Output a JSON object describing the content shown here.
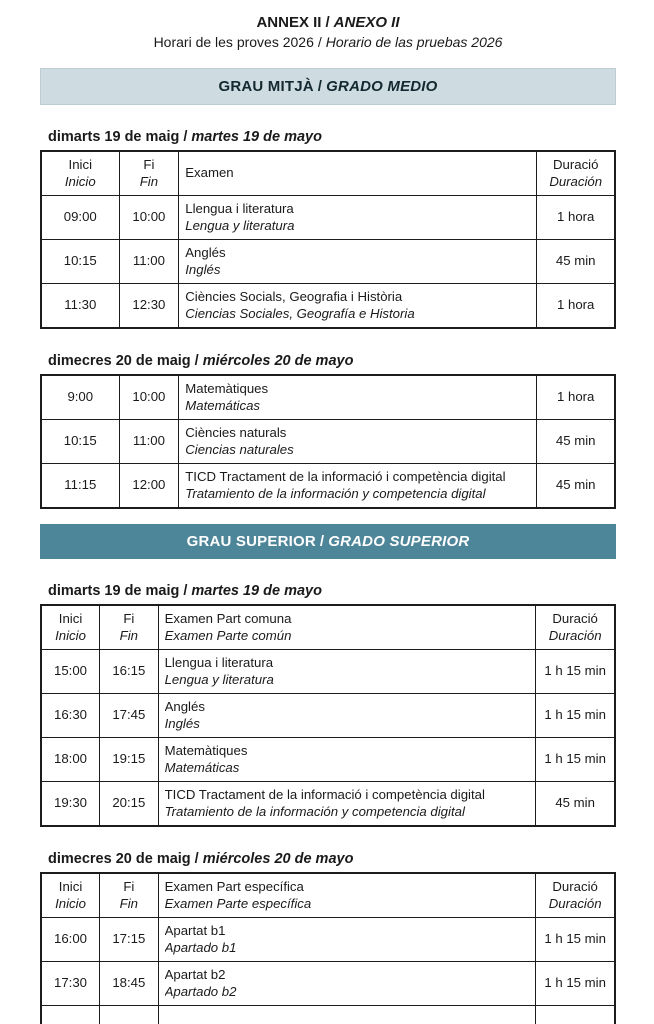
{
  "sep": "/",
  "title": {
    "ca": "ANNEX II",
    "es": "ANEXO II"
  },
  "subtitle": {
    "ca": "Horari de les proves 2026",
    "es": "Horario de las pruebas 2026"
  },
  "labels": {
    "inici_ca": "Inici",
    "inici_es": "Inicio",
    "fi_ca": "Fi",
    "fi_es": "Fin",
    "duracio_ca": "Duració",
    "duracio_es": "Duración"
  },
  "colors": {
    "band_medio_bg": "#cedce2",
    "band_medio_text": "#13282f",
    "band_superior_bg": "#4d8599",
    "band_superior_text": "#ffffff",
    "table_border": "#1c1c1c"
  },
  "sections": [
    {
      "band": {
        "ca": "GRAU MITJÀ",
        "es": "GRADO MEDIO"
      },
      "days": [
        {
          "heading": {
            "ca": "dimarts 19 de maig",
            "es": "martes 19 de mayo"
          },
          "header": {
            "examen_ca": "Examen",
            "examen_es": ""
          },
          "rows": [
            {
              "inici": "09:00",
              "fi": "10:00",
              "ca": "Llengua i literatura",
              "es": "Lengua y literatura",
              "dur": "1 hora"
            },
            {
              "inici": "10:15",
              "fi": "11:00",
              "ca": "Anglés",
              "es": "Inglés",
              "dur": "45 min"
            },
            {
              "inici": "11:30",
              "fi": "12:30",
              "ca": "Ciències Socials, Geografia i Història",
              "es": "Ciencias Sociales, Geografía e Historia",
              "dur": "1 hora"
            }
          ]
        },
        {
          "heading": {
            "ca": "dimecres 20 de maig",
            "es": "miércoles 20 de mayo"
          },
          "rows": [
            {
              "inici": "9:00",
              "fi": "10:00",
              "ca": "Matemàtiques",
              "es": "Matemáticas",
              "dur": "1 hora"
            },
            {
              "inici": "10:15",
              "fi": "11:00",
              "ca": "Ciències naturals",
              "es": "Ciencias naturales",
              "dur": "45 min"
            },
            {
              "inici": "11:15",
              "fi": "12:00",
              "ca": "TICD Tractament de la informació i competència digital",
              "es": "Tratamiento de la información y competencia digital",
              "dur": "45 min"
            }
          ]
        }
      ]
    },
    {
      "band": {
        "ca": "GRAU SUPERIOR",
        "es": "GRADO SUPERIOR"
      },
      "days": [
        {
          "heading": {
            "ca": "dimarts 19 de maig",
            "es": "martes 19 de mayo"
          },
          "header": {
            "examen_ca": "Examen Part comuna",
            "examen_es": "Examen Parte común"
          },
          "rows": [
            {
              "inici": "15:00",
              "fi": "16:15",
              "ca": "Llengua i literatura",
              "es": "Lengua y literatura",
              "dur": "1 h 15 min"
            },
            {
              "inici": "16:30",
              "fi": "17:45",
              "ca": "Anglés",
              "es": "Inglés",
              "dur": "1 h 15 min"
            },
            {
              "inici": "18:00",
              "fi": "19:15",
              "ca": "Matemàtiques",
              "es": "Matemáticas",
              "dur": "1 h 15 min"
            },
            {
              "inici": "19:30",
              "fi": "20:15",
              "ca": "TICD Tractament de la informació i competència digital",
              "es": "Tratamiento de la información y competencia digital",
              "dur": "45 min"
            }
          ]
        },
        {
          "heading": {
            "ca": "dimecres 20 de maig",
            "es": "miércoles 20 de mayo"
          },
          "header": {
            "examen_ca": "Examen Part específica",
            "examen_es": "Examen Parte específica"
          },
          "rows": [
            {
              "inici": "16:00",
              "fi": "17:15",
              "ca": "Apartat b1",
              "es": "Apartado b1",
              "dur": "1 h 15 min"
            },
            {
              "inici": "17:30",
              "fi": "18:45",
              "ca": "Apartat b2",
              "es": "Apartado b2",
              "dur": "1 h 15 min"
            },
            {
              "inici": "",
              "fi": "",
              "ca": "",
              "es": "",
              "dur": ""
            }
          ]
        }
      ]
    }
  ]
}
